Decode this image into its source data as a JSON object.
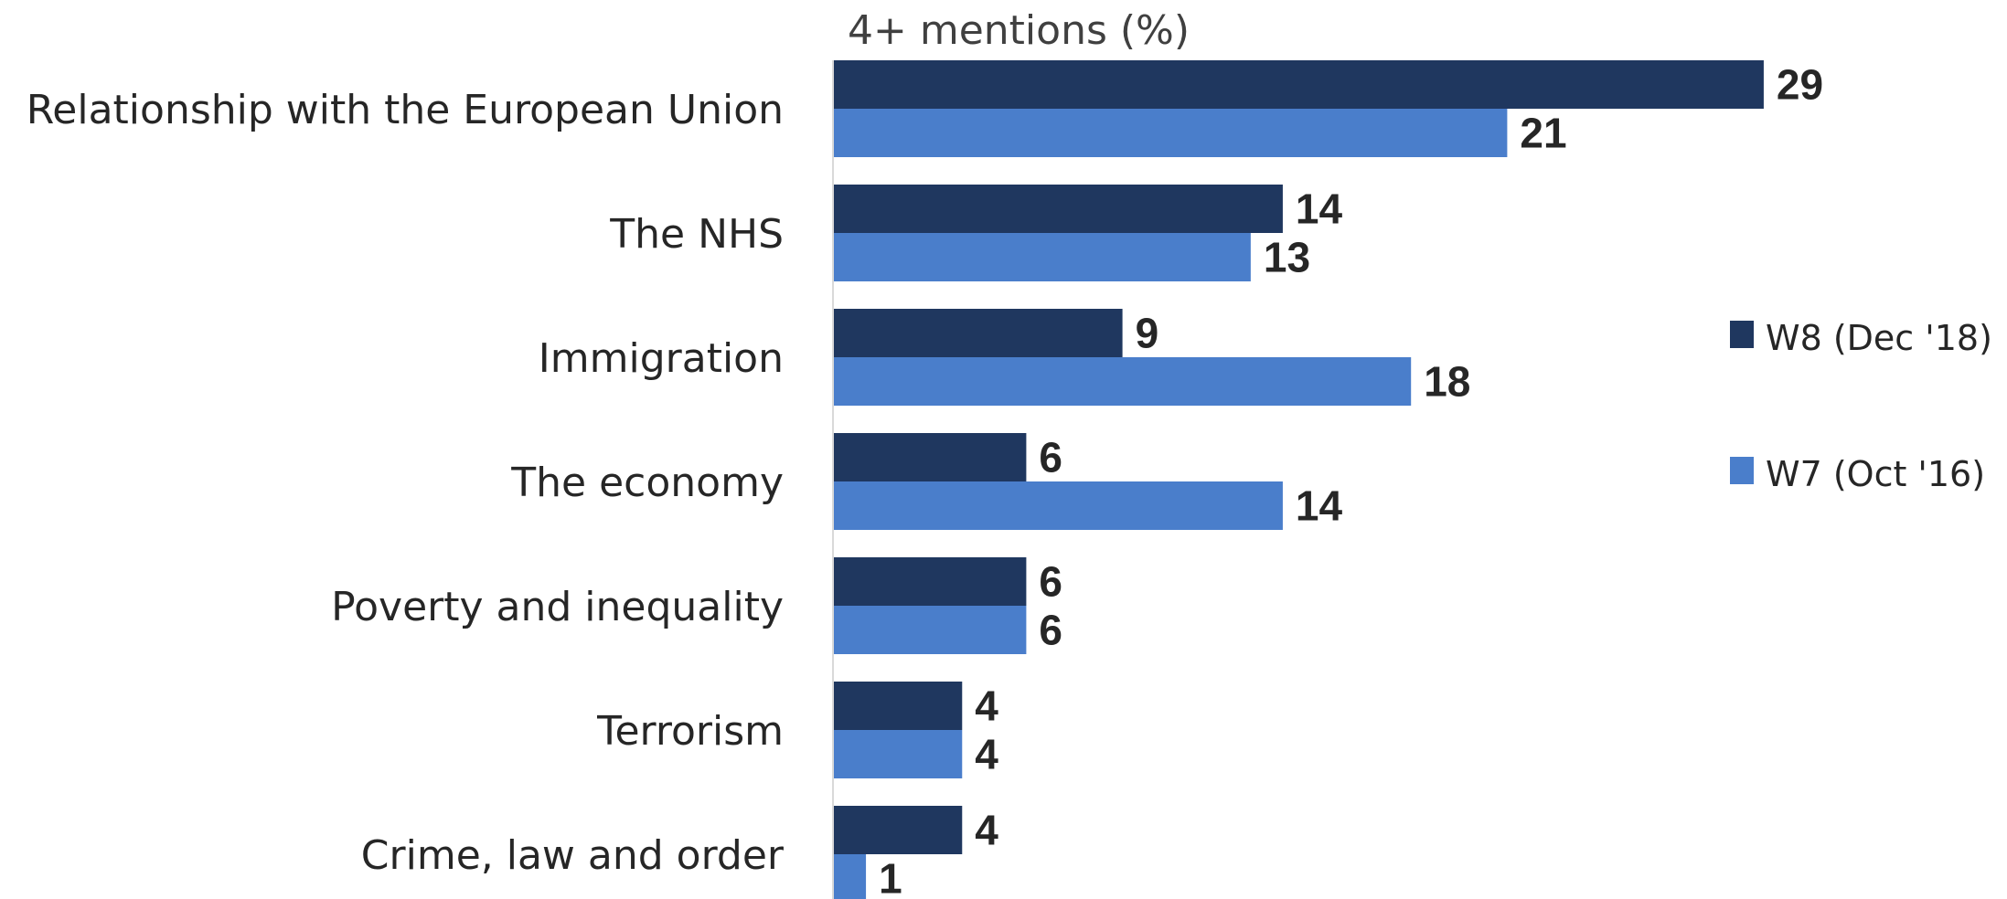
{
  "chart_data": {
    "type": "bar",
    "orientation": "horizontal",
    "title": "4+ mentions (%)",
    "categories": [
      "Relationship with the European Union",
      "The NHS",
      "Immigration",
      "The economy",
      "Poverty and inequality",
      "Terrorism",
      "Crime, law and order"
    ],
    "series": [
      {
        "name": "W8 (Dec '18)",
        "color": "#1f375f",
        "values": [
          29,
          14,
          9,
          6,
          6,
          4,
          4
        ]
      },
      {
        "name": "W7 (Oct '16)",
        "color": "#4a7ecb",
        "values": [
          21,
          13,
          18,
          14,
          6,
          4,
          1
        ]
      }
    ],
    "xlim": [
      0,
      30
    ],
    "grid": false,
    "legend_position": "right"
  }
}
